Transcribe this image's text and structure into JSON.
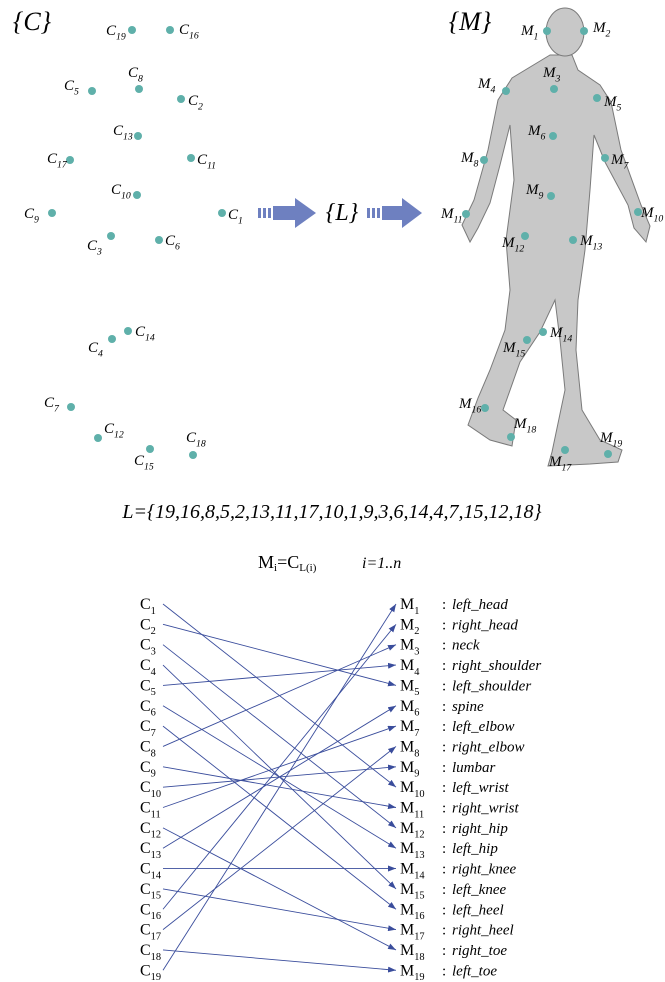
{
  "sets": {
    "c": "{C}",
    "m": "{M}",
    "l": "{L}"
  },
  "c_letter": "C",
  "m_letter": "M",
  "indices": [
    "1",
    "2",
    "3",
    "4",
    "5",
    "6",
    "7",
    "8",
    "9",
    "10",
    "11",
    "12",
    "13",
    "14",
    "15",
    "16",
    "17",
    "18",
    "19"
  ],
  "formula": "L={19,16,8,5,2,13,11,17,10,1,9,3,6,14,4,7,15,12,18}",
  "mapping": [
    19,
    16,
    8,
    5,
    2,
    13,
    11,
    17,
    10,
    1,
    9,
    3,
    6,
    14,
    4,
    7,
    15,
    12,
    18
  ],
  "rule": {
    "m": "M",
    "i": "i",
    "eq": "=C",
    "sub": "L(i)",
    "range": "i=1..n"
  },
  "separator": ":",
  "joints": [
    "left_head",
    "right_head",
    "neck",
    "right_shoulder",
    "left_shoulder",
    "spine",
    "left_elbow",
    "right_elbow",
    "lumbar",
    "left_wrist",
    "right_wrist",
    "right_hip",
    "left_hip",
    "right_knee",
    "left_knee",
    "left_heel",
    "right_heel",
    "right_toe",
    "left_toe"
  ]
}
